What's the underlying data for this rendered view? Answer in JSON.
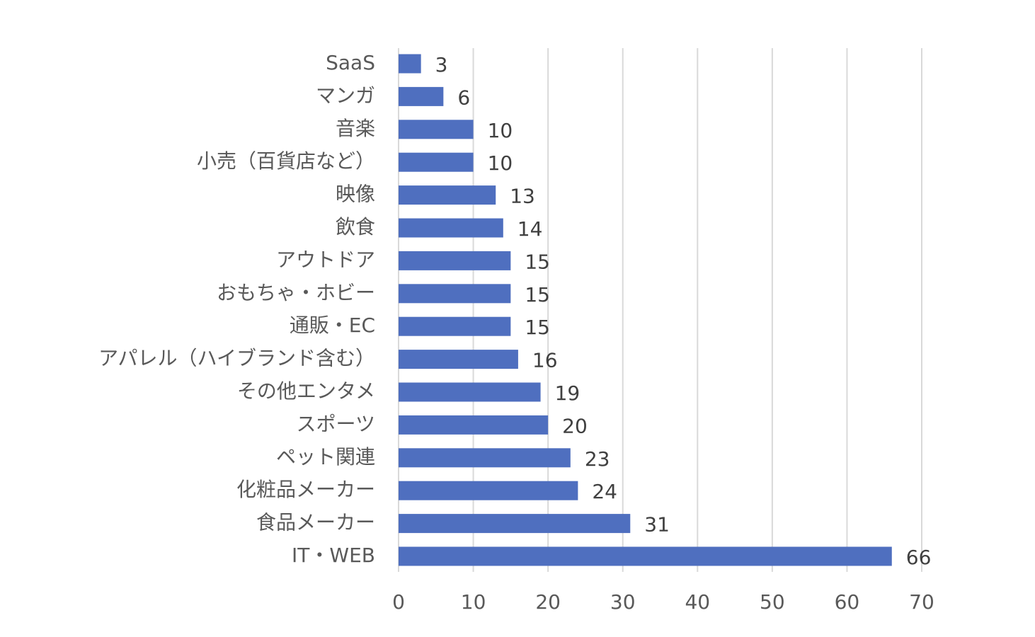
{
  "chart_data": {
    "type": "bar",
    "orientation": "horizontal",
    "categories": [
      "SaaS",
      "マンガ",
      "音楽",
      "小売（百貨店など）",
      "映像",
      "飲食",
      "アウトドア",
      "おもちゃ・ホビー",
      "通販・EC",
      "アパレル（ハイブランド含む）",
      "その他エンタメ",
      "スポーツ",
      "ペット関連",
      "化粧品メーカー",
      "食品メーカー",
      "IT・WEB"
    ],
    "values": [
      3,
      6,
      10,
      10,
      13,
      14,
      15,
      15,
      15,
      16,
      19,
      20,
      23,
      24,
      31,
      66
    ],
    "xlim": [
      0,
      70
    ],
    "xticks": [
      0,
      10,
      20,
      30,
      40,
      50,
      60,
      70
    ],
    "grid": true,
    "data_labels": true,
    "bar_color": "#4f6fbf",
    "title": "",
    "xlabel": "",
    "ylabel": ""
  }
}
